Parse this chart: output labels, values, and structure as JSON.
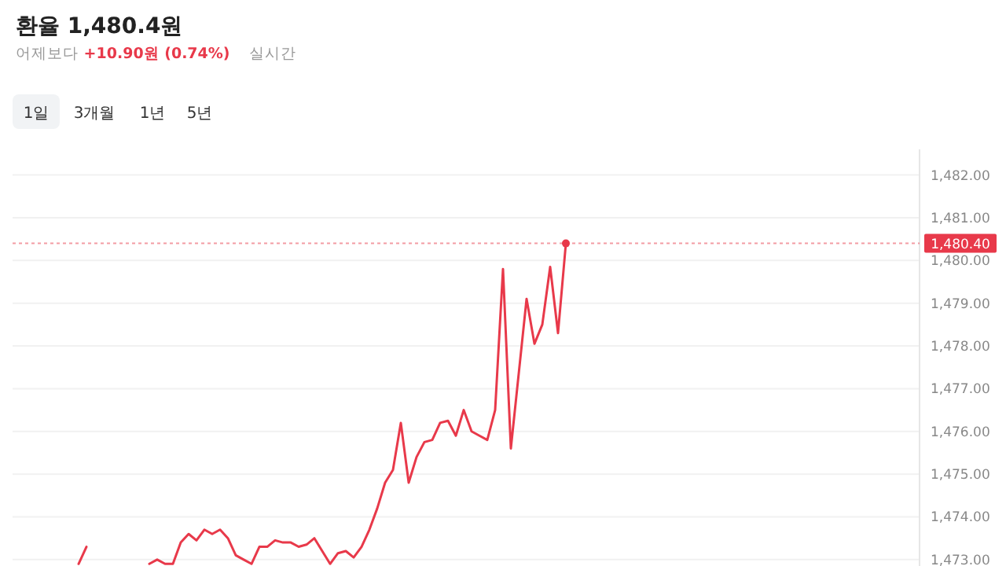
{
  "chart_data": {
    "type": "line",
    "title": "환율 1,480.4원",
    "subtitle": "어제보다 +10.90원 (0.74%)",
    "annotations": [
      "실시간",
      "1일",
      "3개월",
      "1년",
      "5년"
    ],
    "categories": [
      null,
      null,
      null,
      null,
      null,
      null,
      null,
      null,
      null,
      null,
      null,
      null,
      null,
      null,
      null,
      null,
      null,
      null,
      null,
      null,
      null,
      null,
      null,
      null,
      null,
      null,
      null,
      null,
      null,
      null,
      null,
      null,
      null,
      null,
      null,
      null,
      null,
      null,
      null,
      null,
      null,
      null,
      null,
      null,
      null,
      null,
      null,
      null,
      null,
      null,
      null,
      null,
      null,
      null,
      null,
      null,
      null,
      null,
      null,
      null,
      null,
      null,
      null,
      null,
      null,
      null,
      null,
      null,
      null,
      null,
      null,
      null,
      null,
      null,
      null,
      null,
      null,
      null,
      null,
      null,
      null,
      null,
      null,
      null,
      null,
      null,
      null,
      null,
      null,
      null,
      null,
      null,
      null,
      null,
      null,
      null,
      null,
      null,
      null,
      null,
      null,
      null,
      null,
      null,
      null,
      null,
      null,
      null,
      null,
      null,
      null,
      null,
      null,
      null,
      null,
      null
    ],
    "series": [
      {
        "color": "#e8394a",
        "values": [
          null,
          null,
          null,
          null,
          null,
          null,
          null,
          null,
          1472.9,
          1473.3,
          null,
          null,
          null,
          null,
          null,
          null,
          null,
          1472.9,
          1473.0,
          1472.9,
          1472.9,
          1473.4,
          1473.6,
          1473.45,
          1473.7,
          1473.6,
          1473.7,
          1473.5,
          1473.1,
          1473.0,
          1472.9,
          1473.3,
          1473.3,
          1473.45,
          1473.4,
          1473.4,
          1473.3,
          1473.35,
          1473.5,
          1473.2,
          1472.9,
          1473.15,
          1473.2,
          1473.05,
          1473.3,
          1473.7,
          1474.2,
          1474.8,
          1475.1,
          1476.2,
          1474.8,
          1475.4,
          1475.75,
          1475.8,
          1476.2,
          1476.25,
          1475.9,
          1476.5,
          1476.0,
          1475.9,
          1475.8,
          1476.5,
          1479.8,
          1475.6,
          1477.35,
          1479.1,
          1478.05,
          1478.5,
          1479.85,
          1478.3,
          1480.4,
          null,
          null,
          null,
          null,
          null,
          null,
          null,
          null,
          null,
          null,
          null,
          null,
          null,
          null,
          null,
          null,
          null,
          null,
          null,
          null,
          null,
          null,
          null,
          null,
          null,
          null,
          null,
          null,
          null,
          null,
          null,
          null,
          null,
          null,
          null,
          null,
          null,
          null,
          null,
          null,
          null,
          null,
          null,
          null,
          null
        ]
      }
    ],
    "ylim": [
      1472.85,
      1482.6
    ],
    "yticks": [
      {
        "value": 1473,
        "label": "1,473.00"
      },
      {
        "value": 1474,
        "label": "1,474.00"
      },
      {
        "value": 1475,
        "label": "1,475.00"
      },
      {
        "value": 1476,
        "label": "1,476.00"
      },
      {
        "value": 1477,
        "label": "1,477.00"
      },
      {
        "value": 1478,
        "label": "1,478.00"
      },
      {
        "value": 1479,
        "label": "1,479.00"
      },
      {
        "value": 1480,
        "label": "1,480.00"
      },
      {
        "value": 1481,
        "label": "1,481.00"
      },
      {
        "value": 1482,
        "label": "1,482.00"
      }
    ],
    "ref_lines": [
      {
        "axis": "y",
        "value": 1480.4,
        "label": "1,480.40",
        "color": "#e8394a",
        "line_style": "dotted"
      }
    ],
    "grid": "y",
    "marker": "none",
    "line_style": "solid"
  }
}
